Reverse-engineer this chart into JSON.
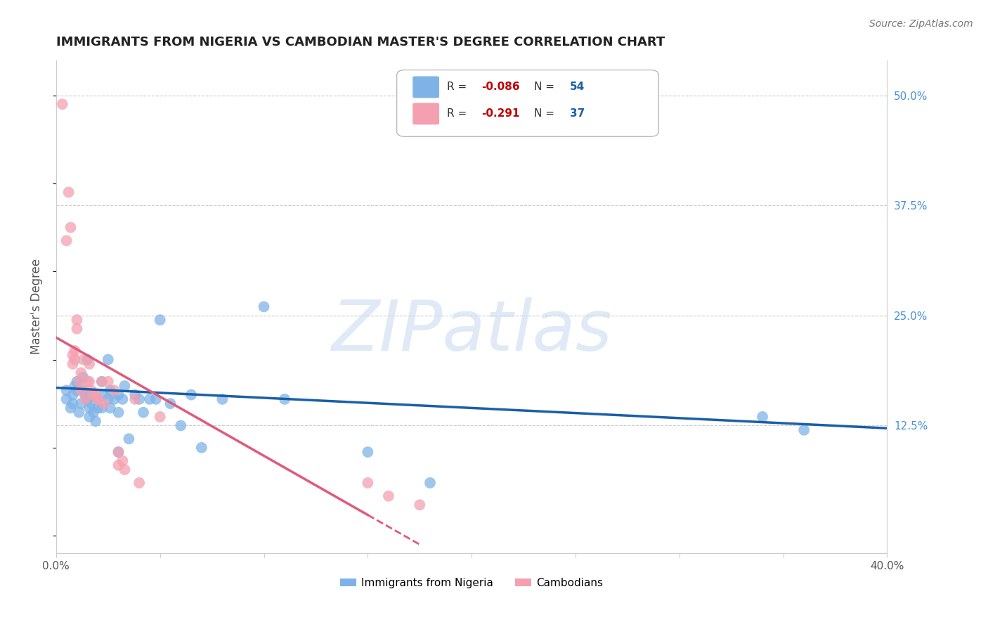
{
  "title": "IMMIGRANTS FROM NIGERIA VS CAMBODIAN MASTER'S DEGREE CORRELATION CHART",
  "source": "Source: ZipAtlas.com",
  "ylabel": "Master's Degree",
  "xlim": [
    0.0,
    0.4
  ],
  "ylim": [
    -0.02,
    0.54
  ],
  "ytick_right": [
    "50.0%",
    "37.5%",
    "25.0%",
    "12.5%"
  ],
  "ytick_right_vals": [
    0.5,
    0.375,
    0.25,
    0.125
  ],
  "grid_color": "#cccccc",
  "background_color": "#ffffff",
  "watermark": "ZIPatlas",
  "legend_blue_label": "Immigrants from Nigeria",
  "legend_pink_label": "Cambodians",
  "blue_R": "-0.086",
  "blue_N": "54",
  "pink_R": "-0.291",
  "pink_N": "37",
  "blue_color": "#7fb3e8",
  "pink_color": "#f4a0b0",
  "blue_line_color": "#1a5fa8",
  "pink_line_color": "#e05a7a",
  "blue_scatter_x": [
    0.005,
    0.005,
    0.007,
    0.008,
    0.008,
    0.009,
    0.01,
    0.01,
    0.011,
    0.012,
    0.013,
    0.013,
    0.014,
    0.015,
    0.015,
    0.016,
    0.016,
    0.017,
    0.018,
    0.018,
    0.019,
    0.02,
    0.02,
    0.022,
    0.022,
    0.023,
    0.025,
    0.025,
    0.026,
    0.026,
    0.028,
    0.03,
    0.03,
    0.03,
    0.032,
    0.033,
    0.035,
    0.038,
    0.04,
    0.042,
    0.045,
    0.048,
    0.05,
    0.055,
    0.06,
    0.065,
    0.07,
    0.08,
    0.1,
    0.11,
    0.15,
    0.18,
    0.34,
    0.36
  ],
  "blue_scatter_y": [
    0.165,
    0.155,
    0.145,
    0.16,
    0.15,
    0.17,
    0.175,
    0.165,
    0.14,
    0.15,
    0.18,
    0.165,
    0.16,
    0.2,
    0.155,
    0.145,
    0.135,
    0.15,
    0.16,
    0.14,
    0.13,
    0.145,
    0.155,
    0.175,
    0.145,
    0.16,
    0.2,
    0.155,
    0.165,
    0.145,
    0.155,
    0.16,
    0.14,
    0.095,
    0.155,
    0.17,
    0.11,
    0.16,
    0.155,
    0.14,
    0.155,
    0.155,
    0.245,
    0.15,
    0.125,
    0.16,
    0.1,
    0.155,
    0.26,
    0.155,
    0.095,
    0.06,
    0.135,
    0.12
  ],
  "pink_scatter_x": [
    0.003,
    0.005,
    0.006,
    0.007,
    0.008,
    0.008,
    0.009,
    0.009,
    0.01,
    0.01,
    0.011,
    0.012,
    0.012,
    0.013,
    0.014,
    0.015,
    0.016,
    0.016,
    0.017,
    0.018,
    0.019,
    0.02,
    0.02,
    0.022,
    0.023,
    0.025,
    0.028,
    0.03,
    0.03,
    0.032,
    0.033,
    0.038,
    0.04,
    0.05,
    0.15,
    0.16,
    0.175
  ],
  "pink_scatter_y": [
    0.49,
    0.335,
    0.39,
    0.35,
    0.205,
    0.195,
    0.21,
    0.2,
    0.245,
    0.235,
    0.175,
    0.185,
    0.165,
    0.2,
    0.155,
    0.175,
    0.195,
    0.175,
    0.165,
    0.16,
    0.16,
    0.155,
    0.155,
    0.175,
    0.15,
    0.175,
    0.165,
    0.095,
    0.08,
    0.085,
    0.075,
    0.155,
    0.06,
    0.135,
    0.06,
    0.045,
    0.035
  ],
  "blue_trendline_x0": 0.0,
  "blue_trendline_y0": 0.168,
  "blue_trendline_x1": 0.4,
  "blue_trendline_y1": 0.122,
  "pink_trendline_x0": 0.0,
  "pink_trendline_y0": 0.225,
  "pink_trendline_x1": 0.175,
  "pink_trendline_y1": -0.01,
  "pink_trendline_dashed_start": 0.15
}
